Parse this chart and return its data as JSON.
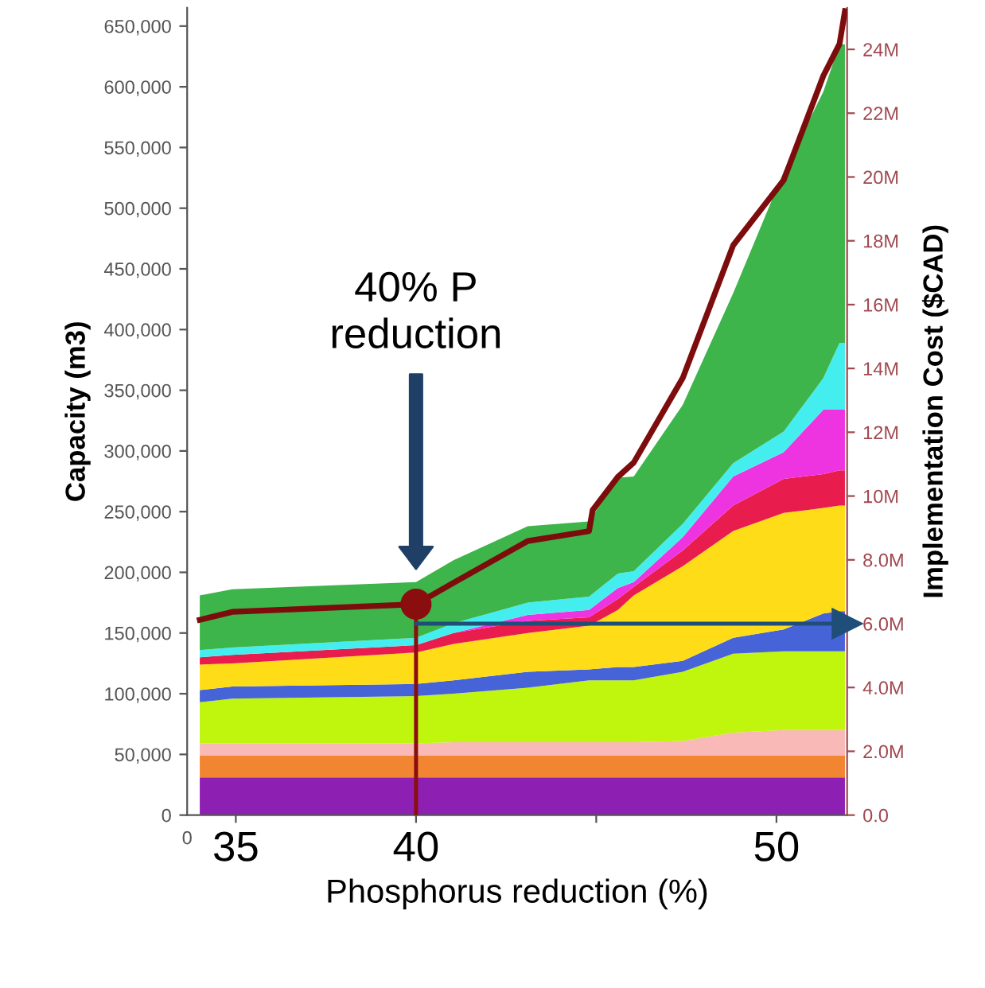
{
  "chart_data": {
    "type": "area",
    "stacked": true,
    "xlabel": "Phosphorus reduction (%)",
    "ylabel": "Capacity (m3)",
    "y2label": "Implementation Cost ($CAD)",
    "x": [
      34.0,
      34.9,
      40,
      41.04,
      43.1,
      44.8,
      45.6,
      46.04,
      47.4,
      48.8,
      50.2,
      51.3,
      51.75,
      51.9
    ],
    "series": [
      {
        "color": "#8e1fb3",
        "values": [
          31000,
          31000,
          31000,
          31000,
          31000,
          31000,
          31000,
          31000,
          31000,
          31000,
          31000,
          31000,
          31000,
          31000
        ]
      },
      {
        "color": "#f28532",
        "values": [
          18000,
          18000,
          18000,
          18000,
          18000,
          18000,
          18000,
          18000,
          18000,
          18000,
          18000,
          18000,
          18000,
          18000
        ]
      },
      {
        "color": "#f9b9b7",
        "values": [
          10000,
          10000,
          10000,
          11000,
          11000,
          11000,
          11000,
          11000,
          12000,
          19000,
          21000,
          21000,
          21000,
          21000
        ]
      },
      {
        "color": "#c0f50d",
        "values": [
          34000,
          37000,
          39000,
          40000,
          45000,
          51000,
          51000,
          51000,
          57000,
          65000,
          65000,
          65000,
          65000,
          65000
        ]
      },
      {
        "color": "#4664d8",
        "values": [
          10000,
          10000,
          10000,
          11000,
          13000,
          9000,
          11000,
          11000,
          9000,
          13000,
          18000,
          31000,
          33000,
          33000
        ]
      },
      {
        "color": "#fedd18",
        "values": [
          21000,
          19000,
          26000,
          30000,
          32000,
          36000,
          47000,
          59000,
          78000,
          88000,
          96000,
          87000,
          87000,
          87000
        ]
      },
      {
        "color": "#e81d4d",
        "values": [
          6000,
          7000,
          6000,
          9000,
          10000,
          7000,
          9000,
          7000,
          13000,
          21000,
          28000,
          28000,
          29000,
          29000
        ]
      },
      {
        "color": "#ee33e0",
        "values": [
          0,
          0,
          0,
          0,
          5000,
          6000,
          9000,
          4000,
          11000,
          24000,
          22000,
          53000,
          50000,
          50000
        ]
      },
      {
        "color": "#45eeee",
        "values": [
          6000,
          6000,
          6000,
          8000,
          10000,
          11000,
          12000,
          9000,
          11000,
          11000,
          17000,
          26000,
          55000,
          55000
        ]
      },
      {
        "color": "#3db54b",
        "values": [
          45000,
          48000,
          46000,
          52000,
          63000,
          62000,
          79000,
          78000,
          98000,
          140000,
          214000,
          236000,
          246000,
          246000
        ]
      },
      {
        "type": "line",
        "axis": "y2",
        "color": "#7d0c0c",
        "line_style": "solid",
        "x": [
          34.0,
          34.9,
          40,
          41.04,
          43.1,
          44.8,
          44.9,
          45.6,
          46.04,
          47.4,
          48.8,
          50.2,
          51.3,
          51.75,
          51.9
        ],
        "values": [
          6120000,
          6370000,
          6610000,
          7280000,
          8590000,
          8900000,
          9560000,
          10600000,
          11050000,
          13700000,
          17860000,
          19900000,
          23170000,
          24170000,
          25200000
        ]
      },
      {
        "type": "scatter",
        "axis": "y2",
        "color": "#8b0e0e",
        "marker": "circle",
        "x": [
          40
        ],
        "values": [
          6610000
        ]
      }
    ],
    "xlim": [
      33.65,
      51.96
    ],
    "ylim": [
      0,
      665000
    ],
    "y2lim": [
      0,
      25300000
    ],
    "xticks": [
      35,
      {
        "value": 40,
        "label": "40"
      },
      {
        "value": 45,
        "label": null
      },
      {
        "value": 50,
        "label": "50"
      }
    ],
    "yticks": [
      0,
      {
        "value": 50000,
        "label": "50,000"
      },
      {
        "value": 100000,
        "label": "100,000"
      },
      {
        "value": 150000,
        "label": "150,000"
      },
      {
        "value": 200000,
        "label": "200,000"
      },
      {
        "value": 250000,
        "label": "250,000"
      },
      {
        "value": 300000,
        "label": "300,000"
      },
      {
        "value": 350000,
        "label": "350,000"
      },
      {
        "value": 400000,
        "label": "400,000"
      },
      {
        "value": 450000,
        "label": "450,000"
      },
      {
        "value": 500000,
        "label": "500,000"
      },
      {
        "value": 550000,
        "label": "550,000"
      },
      {
        "value": 600000,
        "label": "600,000"
      },
      {
        "value": 650000,
        "label": "650,000"
      }
    ],
    "y2ticks": [
      {
        "value": 0,
        "label": "0.0"
      },
      {
        "value": 2000000,
        "label": "2.0M"
      },
      {
        "value": 4000000,
        "label": "4.0M"
      },
      {
        "value": 6000000,
        "label": "6.0M"
      },
      {
        "value": 8000000,
        "label": "8.0M"
      },
      {
        "value": 10000000,
        "label": "10M"
      },
      {
        "value": 12000000,
        "label": "12M"
      },
      {
        "value": 14000000,
        "label": "14M"
      },
      {
        "value": 16000000,
        "label": "16M"
      },
      {
        "value": 18000000,
        "label": "18M"
      },
      {
        "value": 20000000,
        "label": "20M"
      },
      {
        "value": 22000000,
        "label": "22M"
      },
      {
        "value": 24000000,
        "label": "24M"
      }
    ],
    "ref_lines": [
      {
        "axis": "x",
        "value": 40,
        "label": null,
        "color": "#8b0e0e"
      },
      {
        "axis": "y2",
        "value": 6000000,
        "label": null,
        "color": "#1f4e79"
      }
    ],
    "annotations": [
      "40% P\nreduction",
      "0"
    ],
    "grid": false,
    "legend": false
  }
}
